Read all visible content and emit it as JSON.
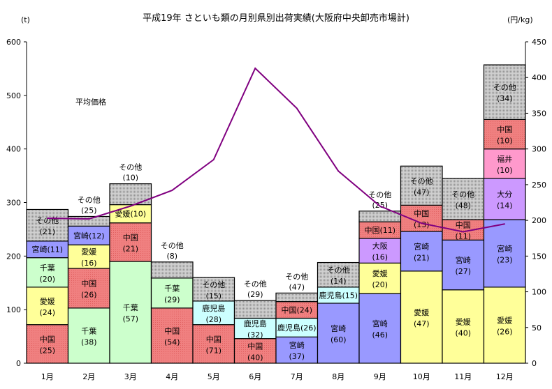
{
  "chart_data": {
    "type": "bar",
    "stacked": true,
    "title": "平成19年 さといも類の月別県別出荷実績(大阪府中央卸売市場計)",
    "ylabel": "(t)",
    "y2label": "(円/kg)",
    "ylim": [
      0,
      600
    ],
    "y2lim": [
      0,
      450
    ],
    "yticks": [
      0,
      100,
      200,
      300,
      400,
      500,
      600
    ],
    "y2ticks": [
      0,
      50,
      100,
      150,
      200,
      250,
      300,
      350,
      400,
      450
    ],
    "categories": [
      "1月",
      "2月",
      "3月",
      "4月",
      "5月",
      "6月",
      "7月",
      "8月",
      "9月",
      "10月",
      "11月",
      "12月"
    ],
    "colors": {
      "中国": "#f08080",
      "愛媛": "#ffff99",
      "千葉": "#ccffcc",
      "宮崎": "#9999ff",
      "その他": "#c0c0c0",
      "鹿児島": "#ccffff",
      "大阪": "#cc99ff",
      "大分": "#cc99ff",
      "福井": "#ff99cc",
      "line": "#800080"
    },
    "bars": [
      {
        "month": "1月",
        "segments": [
          {
            "name": "中国",
            "value": 72,
            "pct": "(25)",
            "pos": "inside"
          },
          {
            "name": "愛媛",
            "value": 70,
            "pct": "(24)",
            "pos": "inside"
          },
          {
            "name": "千葉",
            "value": 55,
            "pct": "(20)",
            "pos": "inside"
          },
          {
            "name": "宮崎",
            "value": 31,
            "pct": "(11)",
            "pos": "inline"
          },
          {
            "name": "その他",
            "value": 59,
            "pct": "(21)",
            "pos": "inside"
          }
        ]
      },
      {
        "month": "2月",
        "segments": [
          {
            "name": "千葉",
            "value": 103,
            "pct": "(38)",
            "pos": "inside"
          },
          {
            "name": "中国",
            "value": 74,
            "pct": "(26)",
            "pos": "inside"
          },
          {
            "name": "愛媛",
            "value": 44,
            "pct": "(16)",
            "pos": "inside"
          },
          {
            "name": "宮崎",
            "value": 35,
            "pct": "(12)",
            "pos": "inline"
          },
          {
            "name": "その他",
            "value": 18,
            "pct": "(25)",
            "pos": "above"
          }
        ]
      },
      {
        "month": "3月",
        "segments": [
          {
            "name": "千葉",
            "value": 190,
            "pct": "(57)",
            "pos": "inside"
          },
          {
            "name": "中国",
            "value": 72,
            "pct": "(21)",
            "pos": "inside"
          },
          {
            "name": "愛媛",
            "value": 34,
            "pct": "(10)",
            "pos": "inline"
          },
          {
            "name": "その他",
            "value": 39,
            "pct": "(10)",
            "pos": "above"
          }
        ]
      },
      {
        "month": "4月",
        "segments": [
          {
            "name": "中国",
            "value": 103,
            "pct": "(54)",
            "pos": "inside"
          },
          {
            "name": "千葉",
            "value": 56,
            "pct": "(29)",
            "pos": "inside"
          },
          {
            "name": "その他",
            "value": 30,
            "pct": "(8)",
            "pos": "above"
          }
        ]
      },
      {
        "month": "5月",
        "segments": [
          {
            "name": "中国",
            "value": 72,
            "pct": "(71)",
            "pos": "inside"
          },
          {
            "name": "鹿児島",
            "value": 44,
            "pct": "(28)",
            "pos": "inside"
          },
          {
            "name": "その他",
            "value": 44,
            "pct": "(15)",
            "pos": "inside"
          }
        ]
      },
      {
        "month": "6月",
        "segments": [
          {
            "name": "中国",
            "value": 46,
            "pct": "(40)",
            "pos": "inside"
          },
          {
            "name": "鹿児島",
            "value": 38,
            "pct": "(32)",
            "pos": "inside"
          },
          {
            "name": "その他",
            "value": 33,
            "pct": "(29)",
            "pos": "above"
          }
        ]
      },
      {
        "month": "7月",
        "segments": [
          {
            "name": "宮崎",
            "value": 49,
            "pct": "(37)",
            "pos": "inside"
          },
          {
            "name": "鹿児島",
            "value": 35,
            "pct": "(26)",
            "pos": "inline"
          },
          {
            "name": "中国",
            "value": 31,
            "pct": "(24)",
            "pos": "inline"
          },
          {
            "name": "その他",
            "value": 16,
            "pct": "(47)",
            "pos": "above"
          }
        ]
      },
      {
        "month": "8月",
        "segments": [
          {
            "name": "宮崎",
            "value": 112,
            "pct": "(60)",
            "pos": "inside"
          },
          {
            "name": "鹿児島",
            "value": 30,
            "pct": "(15)",
            "pos": "inline"
          },
          {
            "name": "その他",
            "value": 46,
            "pct": "(14)",
            "pos": "inside"
          }
        ]
      },
      {
        "month": "9月",
        "segments": [
          {
            "name": "宮崎",
            "value": 130,
            "pct": "(46)",
            "pos": "inside"
          },
          {
            "name": "愛媛",
            "value": 57,
            "pct": "(20)",
            "pos": "inside"
          },
          {
            "name": "大阪",
            "value": 46,
            "pct": "(16)",
            "pos": "inside"
          },
          {
            "name": "中国",
            "value": 31,
            "pct": "(11)",
            "pos": "inline"
          },
          {
            "name": "その他",
            "value": 20,
            "pct": "(25)",
            "pos": "above"
          }
        ]
      },
      {
        "month": "10月",
        "segments": [
          {
            "name": "愛媛",
            "value": 172,
            "pct": "(47)",
            "pos": "inside"
          },
          {
            "name": "宮崎",
            "value": 74,
            "pct": "(21)",
            "pos": "inside"
          },
          {
            "name": "中国",
            "value": 49,
            "pct": "(13)",
            "pos": "inside"
          },
          {
            "name": "その他",
            "value": 73,
            "pct": "(47)",
            "pos": "inside"
          }
        ]
      },
      {
        "month": "11月",
        "segments": [
          {
            "name": "愛媛",
            "value": 137,
            "pct": "(40)",
            "pos": "inside"
          },
          {
            "name": "宮崎",
            "value": 93,
            "pct": "(27)",
            "pos": "inside"
          },
          {
            "name": "中国",
            "value": 38,
            "pct": "(11)",
            "pos": "inside"
          },
          {
            "name": "その他",
            "value": 77,
            "pct": "(48)",
            "pos": "inside"
          }
        ]
      },
      {
        "month": "12月",
        "segments": [
          {
            "name": "愛媛",
            "value": 142,
            "pct": "(26)",
            "pos": "inside"
          },
          {
            "name": "宮崎",
            "value": 126,
            "pct": "(23)",
            "pos": "inside"
          },
          {
            "name": "大分",
            "value": 77,
            "pct": "(14)",
            "pos": "inside"
          },
          {
            "name": "福井",
            "value": 55,
            "pct": "(10)",
            "pos": "inside"
          },
          {
            "name": "中国",
            "value": 55,
            "pct": "(10)",
            "pos": "inside"
          },
          {
            "name": "その他",
            "value": 102,
            "pct": "(34)",
            "pos": "inside"
          }
        ]
      }
    ],
    "line": {
      "name": "平均価格",
      "axis": "right",
      "values": [
        203,
        202,
        220,
        242,
        285,
        413,
        357,
        269,
        220,
        196,
        184,
        195
      ]
    }
  }
}
